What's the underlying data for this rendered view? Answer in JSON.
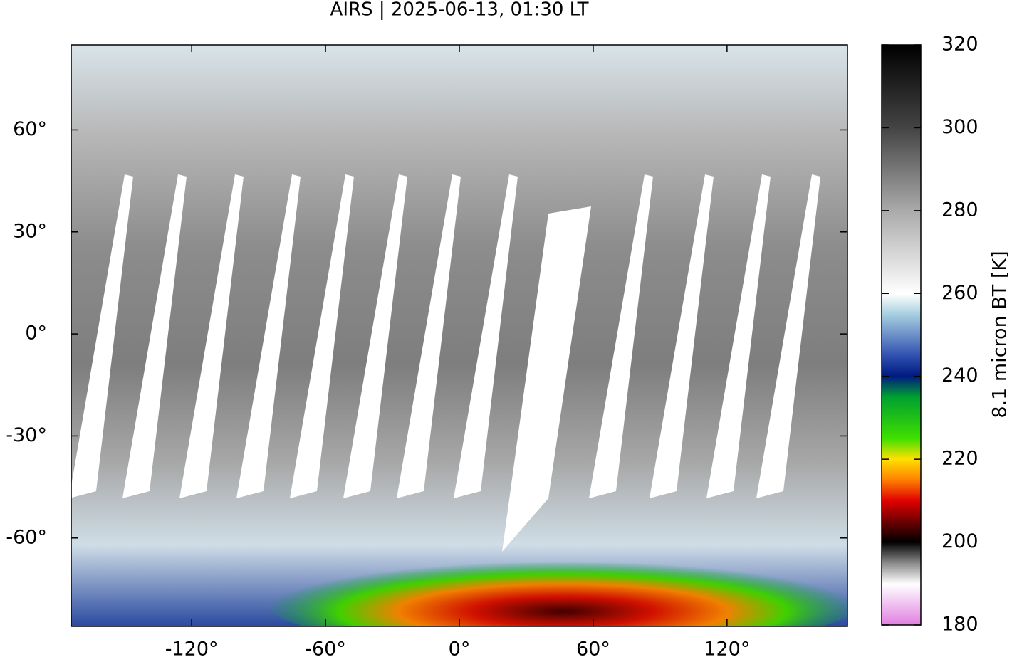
{
  "title": "AIRS | 2025-06-13, 01:30 LT",
  "map": {
    "xlim": [
      -174,
      174
    ],
    "ylim": [
      -86,
      85
    ],
    "xticks": [
      {
        "value": -120,
        "label": "-120°"
      },
      {
        "value": -60,
        "label": "-60°"
      },
      {
        "value": 0,
        "label": "0°"
      },
      {
        "value": 60,
        "label": "60°"
      },
      {
        "value": 120,
        "label": "120°"
      }
    ],
    "yticks": [
      {
        "value": 60,
        "label": "60°"
      },
      {
        "value": 30,
        "label": "30°"
      },
      {
        "value": 0,
        "label": "0°"
      },
      {
        "value": -30,
        "label": "-30°"
      },
      {
        "value": -60,
        "label": "-60°"
      }
    ]
  },
  "colorbar": {
    "label": "8.1 micron BT [K]",
    "lim": [
      180,
      320
    ],
    "ticks": [
      180,
      200,
      220,
      240,
      260,
      280,
      300,
      320
    ]
  }
}
